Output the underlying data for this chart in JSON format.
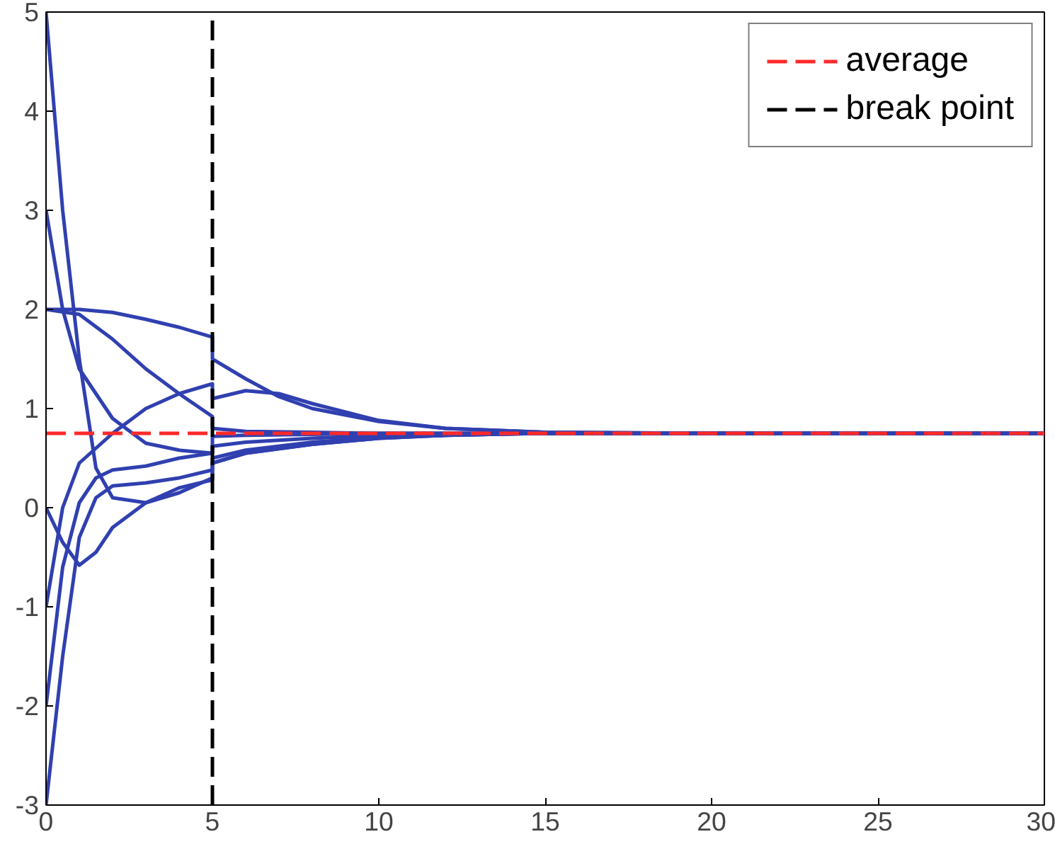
{
  "chart_data": {
    "type": "line",
    "xlim": [
      0,
      30
    ],
    "ylim": [
      -3,
      5
    ],
    "xticks": [
      0,
      5,
      10,
      15,
      20,
      25,
      30
    ],
    "yticks": [
      -3,
      -2,
      -1,
      0,
      1,
      2,
      3,
      4,
      5
    ],
    "grid": false,
    "legend": "top right",
    "marker": "none",
    "line_style": "solid",
    "ref_lines": [
      {
        "axis": "y",
        "value": 0.75,
        "label": "average",
        "color": "#ff2a2a",
        "line_style": "dashed"
      },
      {
        "axis": "x",
        "value": 5,
        "label": "break point",
        "color": "#000000",
        "line_style": "dashed"
      }
    ],
    "series": [
      {
        "color": "#3040b0",
        "x": [
          0,
          1,
          2,
          3,
          4,
          5,
          5,
          6,
          7,
          8,
          10,
          12,
          15,
          20,
          30
        ],
        "values": [
          2,
          2,
          1.97,
          1.9,
          1.82,
          1.72,
          1.5,
          1.3,
          1.12,
          1.0,
          0.87,
          0.8,
          0.76,
          0.75,
          0.75
        ]
      },
      {
        "color": "#3040b0",
        "x": [
          0,
          1,
          2,
          3,
          4,
          5,
          5,
          6,
          8,
          10,
          15,
          20,
          30
        ],
        "values": [
          2,
          1.95,
          1.7,
          1.4,
          1.15,
          0.92,
          0.8,
          0.77,
          0.76,
          0.75,
          0.75,
          0.75,
          0.75
        ]
      },
      {
        "color": "#3040b0",
        "x": [
          0,
          0.5,
          1,
          1.5,
          2,
          3,
          4,
          5,
          5,
          6,
          8,
          10,
          12,
          15,
          20,
          30
        ],
        "values": [
          5,
          3.0,
          1.5,
          0.4,
          0.1,
          0.05,
          0.15,
          0.3,
          0.45,
          0.55,
          0.64,
          0.7,
          0.73,
          0.75,
          0.75,
          0.75
        ]
      },
      {
        "color": "#3040b0",
        "x": [
          0,
          0.5,
          1,
          2,
          3,
          4,
          5,
          5,
          6,
          8,
          10,
          15,
          20,
          30
        ],
        "values": [
          3,
          2.0,
          1.4,
          0.9,
          0.65,
          0.58,
          0.55,
          0.72,
          0.73,
          0.74,
          0.75,
          0.75,
          0.75,
          0.75
        ]
      },
      {
        "color": "#3040b0",
        "x": [
          0,
          0.5,
          1,
          1.5,
          2,
          3,
          4,
          5,
          5,
          6,
          8,
          10,
          12,
          15,
          20,
          30
        ],
        "values": [
          0,
          -0.35,
          -0.58,
          -0.45,
          -0.2,
          0.05,
          0.2,
          0.28,
          0.45,
          0.55,
          0.64,
          0.7,
          0.73,
          0.75,
          0.75,
          0.75
        ]
      },
      {
        "color": "#3040b0",
        "x": [
          0,
          0.5,
          1,
          2,
          3,
          4,
          5,
          5,
          6,
          7,
          8,
          10,
          12,
          15,
          20,
          30
        ],
        "values": [
          -1,
          0,
          0.45,
          0.75,
          1.0,
          1.15,
          1.25,
          1.1,
          1.18,
          1.15,
          1.05,
          0.88,
          0.8,
          0.76,
          0.75,
          0.75
        ]
      },
      {
        "color": "#3040b0",
        "x": [
          0,
          0.5,
          1,
          1.5,
          2,
          3,
          4,
          5,
          5,
          6,
          8,
          10,
          12,
          15,
          20,
          30
        ],
        "values": [
          -2,
          -0.6,
          0.05,
          0.3,
          0.38,
          0.42,
          0.5,
          0.55,
          0.62,
          0.66,
          0.7,
          0.73,
          0.74,
          0.75,
          0.75,
          0.75
        ]
      },
      {
        "color": "#3040b0",
        "x": [
          0,
          0.5,
          1,
          1.5,
          2,
          3,
          4,
          5,
          5,
          6,
          8,
          10,
          12,
          15,
          20,
          30
        ],
        "values": [
          -3,
          -1.5,
          -0.3,
          0.1,
          0.22,
          0.25,
          0.3,
          0.38,
          0.5,
          0.58,
          0.66,
          0.71,
          0.73,
          0.75,
          0.75,
          0.75
        ]
      }
    ]
  }
}
